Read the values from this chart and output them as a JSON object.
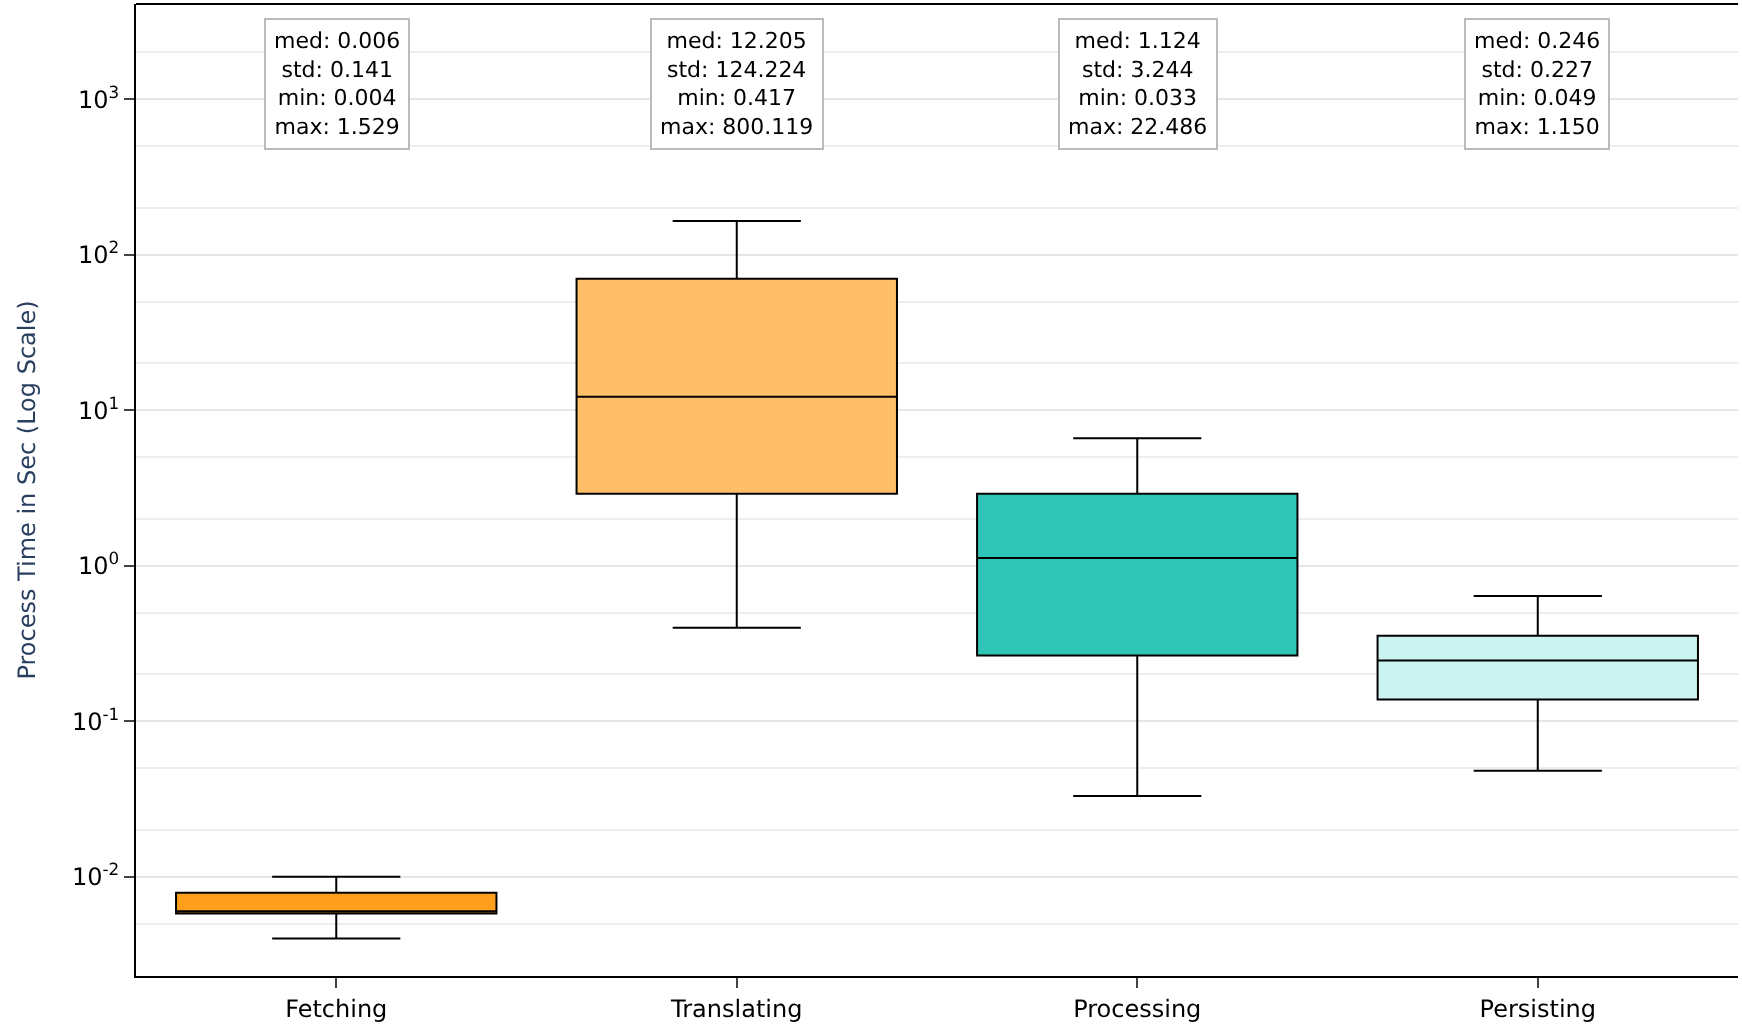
{
  "chart_data": {
    "type": "box",
    "ylabel": "Process Time in Sec (Log Scale)",
    "categories": [
      "Fetching",
      "Translating",
      "Processing",
      "Persisting"
    ],
    "colors": [
      "#ff9f1c",
      "#ffbf69",
      "#2ec4b6",
      "#cbf3f0"
    ],
    "boxes": [
      {
        "low": 0.004,
        "q1": 0.0058,
        "median": 0.006,
        "q3": 0.0079,
        "high": 0.01
      },
      {
        "low": 0.4,
        "q1": 2.9,
        "median": 12.2,
        "q3": 70,
        "high": 165
      },
      {
        "low": 0.033,
        "q1": 0.265,
        "median": 1.12,
        "q3": 2.9,
        "high": 6.6
      },
      {
        "low": 0.048,
        "q1": 0.138,
        "median": 0.246,
        "q3": 0.355,
        "high": 0.64
      }
    ],
    "annotations": [
      "med: 0.006\nstd: 0.141\nmin: 0.004\nmax: 1.529",
      "med: 12.205\nstd: 124.224\nmin: 0.417\nmax: 800.119",
      "med: 1.124\nstd: 3.244\nmin: 0.033\nmax: 22.486",
      "med: 0.246\nstd: 0.227\nmin: 0.049\nmax: 1.150"
    ],
    "log": "y",
    "ylim": [
      0.0023,
      4100
    ],
    "yticks": [
      {
        "value": 0.01,
        "label": "10$^{-2}$"
      },
      {
        "value": 0.1,
        "label": "10$^{-1}$"
      },
      {
        "value": 1,
        "label": "10$^{0}$"
      },
      {
        "value": 10,
        "label": "10$^{1}$"
      },
      {
        "value": 100,
        "label": "10$^{2}$"
      },
      {
        "value": 1000,
        "label": "10$^{3}$"
      }
    ],
    "grid": "y"
  }
}
